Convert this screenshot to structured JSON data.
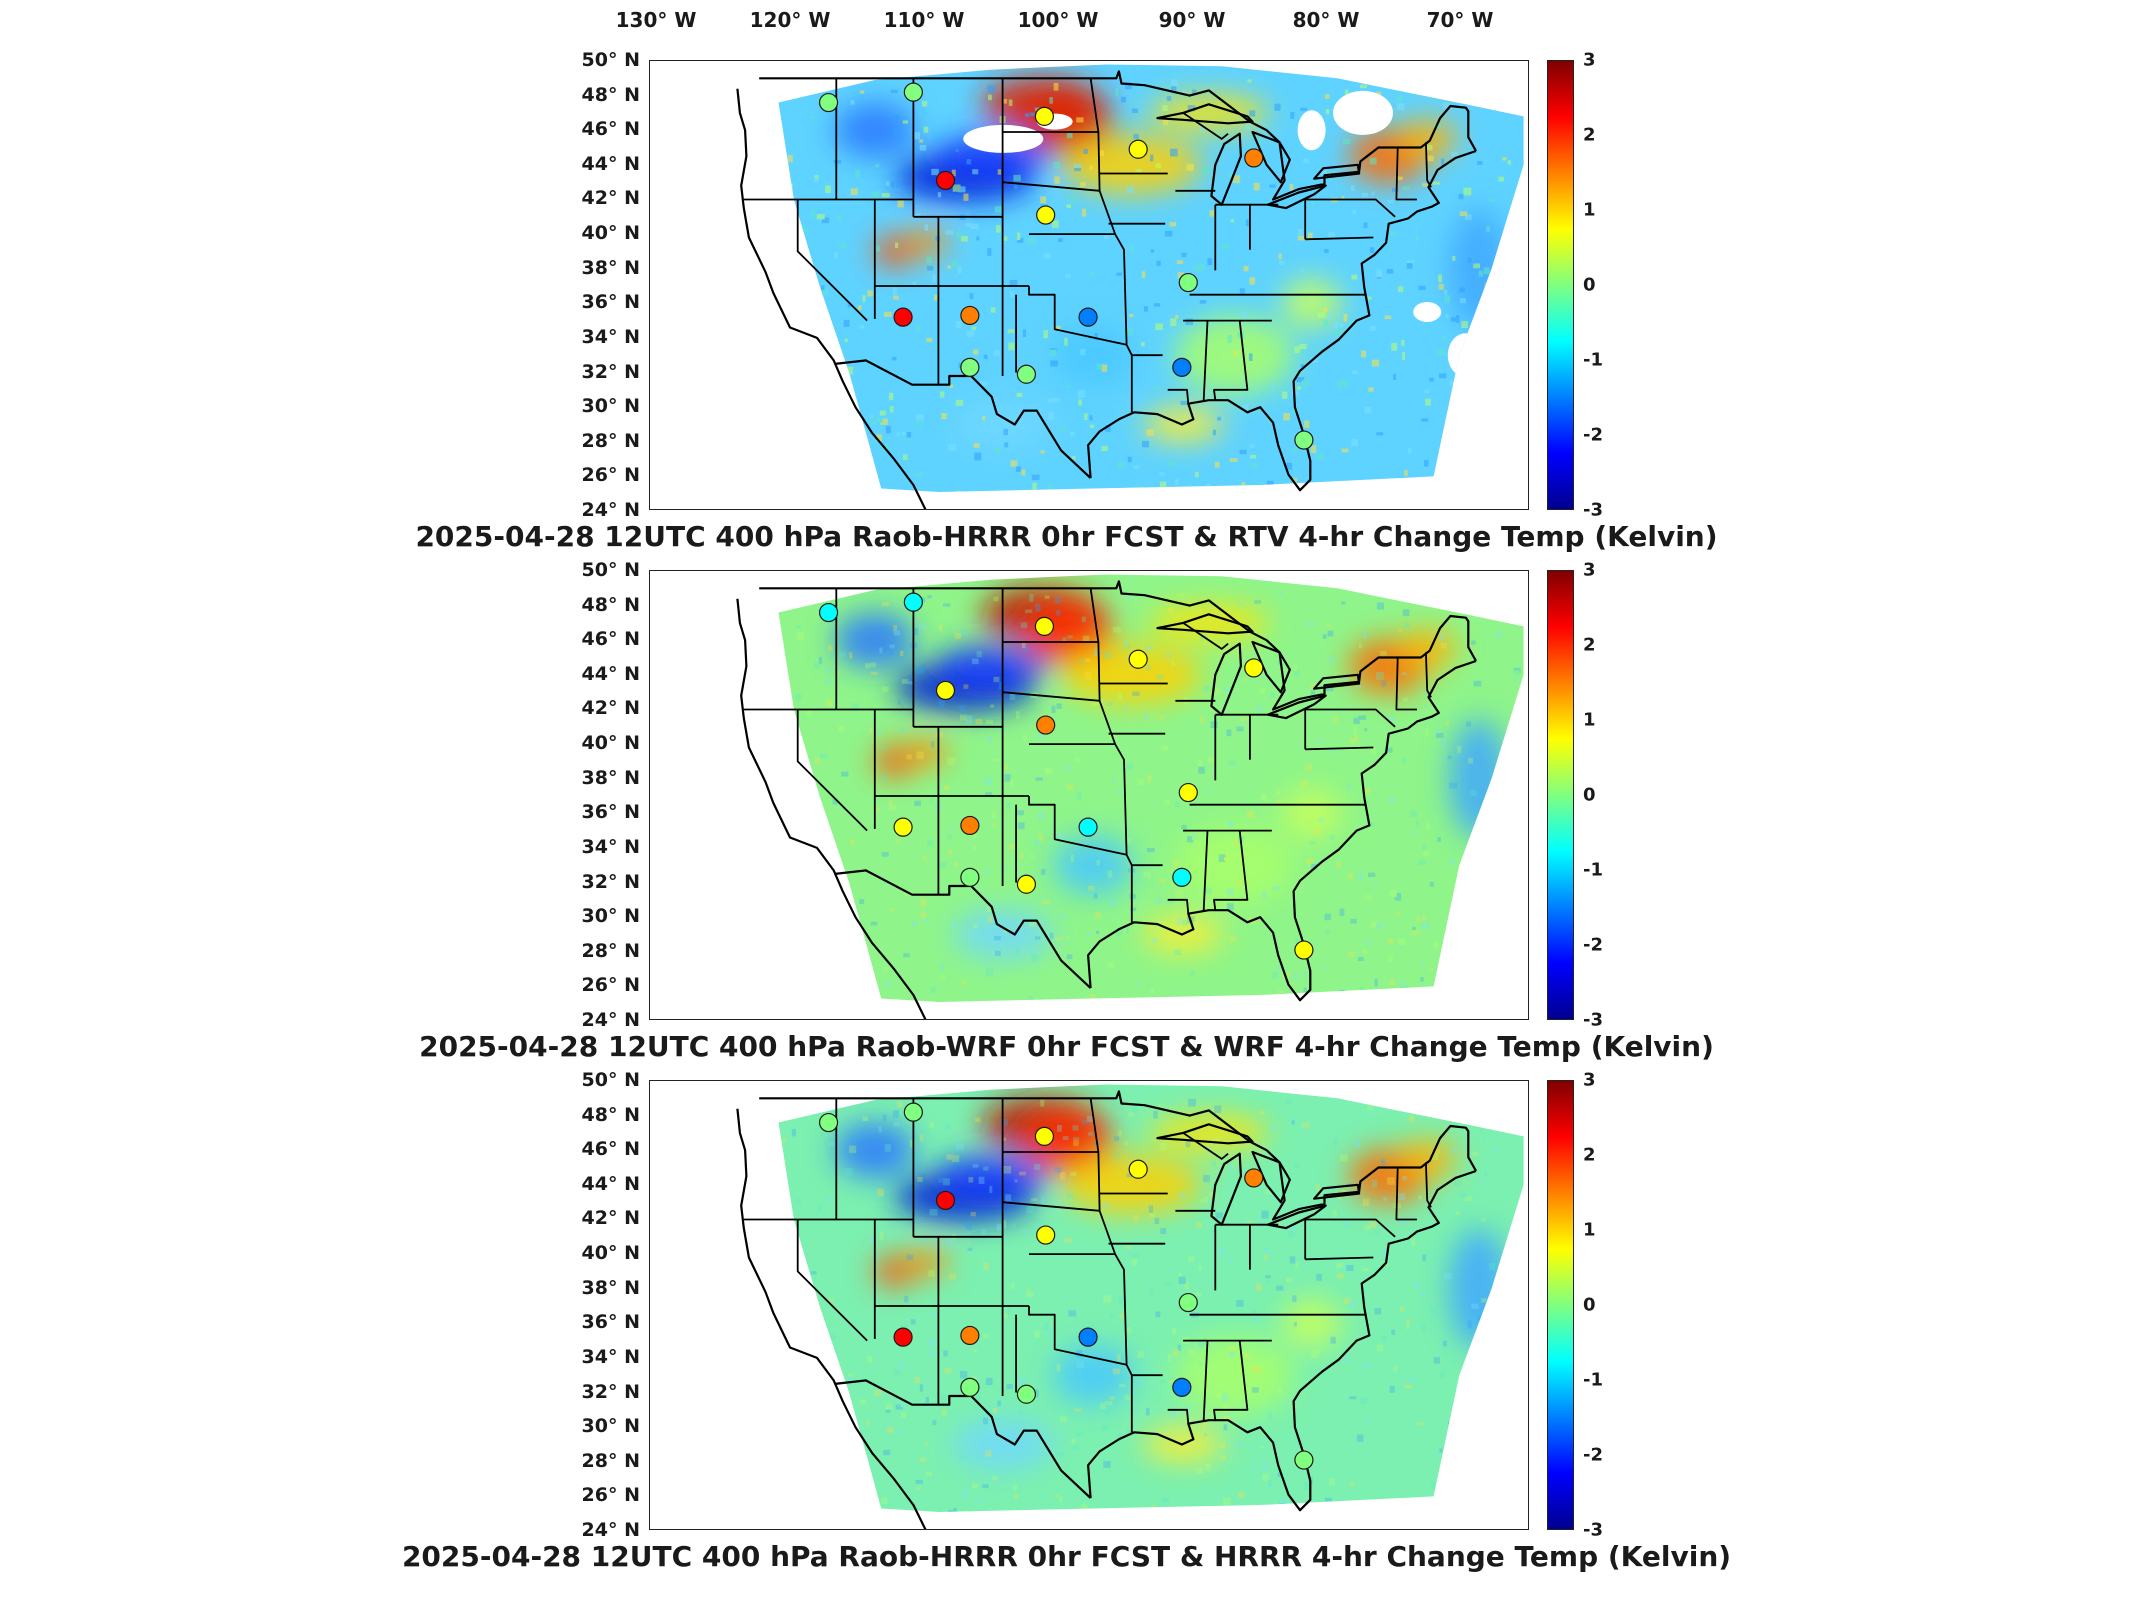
{
  "longitude_labels": [
    "130° W",
    "120° W",
    "110° W",
    "100° W",
    "90° W",
    "80° W",
    "70° W"
  ],
  "latitude_labels": [
    "50° N",
    "48° N",
    "46° N",
    "44° N",
    "42° N",
    "40° N",
    "38° N",
    "36° N",
    "34° N",
    "32° N",
    "30° N",
    "28° N",
    "26° N",
    "24° N"
  ],
  "colorbar": {
    "ticks": [
      "3",
      "2",
      "1",
      "0",
      "-1",
      "-2",
      "-3"
    ],
    "range": [
      -3,
      3
    ],
    "colors": [
      "#00008f",
      "#0000ff",
      "#0080ff",
      "#00ffff",
      "#80ff80",
      "#ffff00",
      "#ff8000",
      "#ff0000",
      "#800000"
    ]
  },
  "panels": [
    {
      "title": "2025-04-28 12UTC 400 hPa Raob-HRRR 0hr FCST & RTV 4-hr Change Temp (Kelvin)",
      "field_note_colors": {
        "base": "#5fd3ff",
        "warm": "#ff5a1a",
        "cold": "#1e3cff"
      },
      "has_missing_patches": true,
      "stations": [
        {
          "lat": 47.6,
          "lon": -117.6,
          "value": 0.2
        },
        {
          "lat": 48.2,
          "lon": -111.0,
          "value": 0.0
        },
        {
          "lat": 46.8,
          "lon": -100.8,
          "value": 0.6
        },
        {
          "lat": 43.1,
          "lon": -108.5,
          "value": 2.3
        },
        {
          "lat": 41.1,
          "lon": -100.7,
          "value": 0.7
        },
        {
          "lat": 35.2,
          "lon": -111.8,
          "value": 2.6
        },
        {
          "lat": 35.3,
          "lon": -106.6,
          "value": 1.5
        },
        {
          "lat": 35.2,
          "lon": -97.4,
          "value": -1.3
        },
        {
          "lat": 32.3,
          "lon": -106.6,
          "value": 0.3
        },
        {
          "lat": 31.9,
          "lon": -102.2,
          "value": -0.2
        },
        {
          "lat": 44.9,
          "lon": -93.5,
          "value": 0.4
        },
        {
          "lat": 44.4,
          "lon": -84.5,
          "value": 1.2
        },
        {
          "lat": 37.2,
          "lon": -89.6,
          "value": 0.0
        },
        {
          "lat": 32.3,
          "lon": -90.1,
          "value": -1.4
        },
        {
          "lat": 28.1,
          "lon": -80.6,
          "value": 0.3
        }
      ]
    },
    {
      "title": "2025-04-28 12UTC 400 hPa Raob-WRF 0hr FCST & WRF 4-hr Change Temp (Kelvin)",
      "field_note_colors": {
        "base": "#8ff58a",
        "warm": "#ff2a00",
        "cold": "#1a2cff"
      },
      "has_missing_patches": false,
      "stations": [
        {
          "lat": 47.6,
          "lon": -117.6,
          "value": -0.8
        },
        {
          "lat": 48.2,
          "lon": -111.0,
          "value": -0.6
        },
        {
          "lat": 46.8,
          "lon": -100.8,
          "value": 0.5
        },
        {
          "lat": 43.1,
          "lon": -108.5,
          "value": 0.6
        },
        {
          "lat": 41.1,
          "lon": -100.7,
          "value": 1.4
        },
        {
          "lat": 35.2,
          "lon": -111.8,
          "value": 1.1
        },
        {
          "lat": 35.3,
          "lon": -106.6,
          "value": 1.3
        },
        {
          "lat": 35.2,
          "lon": -97.4,
          "value": -0.5
        },
        {
          "lat": 32.3,
          "lon": -106.6,
          "value": 0.3
        },
        {
          "lat": 31.9,
          "lon": -102.2,
          "value": 0.6
        },
        {
          "lat": 44.9,
          "lon": -93.5,
          "value": 0.8
        },
        {
          "lat": 44.4,
          "lon": -84.5,
          "value": 1.0
        },
        {
          "lat": 37.2,
          "lon": -89.6,
          "value": 0.4
        },
        {
          "lat": 32.3,
          "lon": -90.1,
          "value": -0.4
        },
        {
          "lat": 28.1,
          "lon": -80.6,
          "value": 0.5
        }
      ]
    },
    {
      "title": "2025-04-28 12UTC 400 hPa Raob-HRRR 0hr FCST & HRRR 4-hr Change Temp (Kelvin)",
      "field_note_colors": {
        "base": "#7cf0b0",
        "warm": "#ff3000",
        "cold": "#1a2cff"
      },
      "has_missing_patches": false,
      "stations": [
        {
          "lat": 47.6,
          "lon": -117.6,
          "value": 0.2
        },
        {
          "lat": 48.2,
          "lon": -111.0,
          "value": 0.0
        },
        {
          "lat": 46.8,
          "lon": -100.8,
          "value": 0.6
        },
        {
          "lat": 43.1,
          "lon": -108.5,
          "value": 2.3
        },
        {
          "lat": 41.1,
          "lon": -100.7,
          "value": 0.7
        },
        {
          "lat": 35.2,
          "lon": -111.8,
          "value": 2.6
        },
        {
          "lat": 35.3,
          "lon": -106.6,
          "value": 1.5
        },
        {
          "lat": 35.2,
          "lon": -97.4,
          "value": -1.3
        },
        {
          "lat": 32.3,
          "lon": -106.6,
          "value": 0.3
        },
        {
          "lat": 31.9,
          "lon": -102.2,
          "value": -0.2
        },
        {
          "lat": 44.9,
          "lon": -93.5,
          "value": 0.4
        },
        {
          "lat": 44.4,
          "lon": -84.5,
          "value": 1.2
        },
        {
          "lat": 37.2,
          "lon": -89.6,
          "value": 0.0
        },
        {
          "lat": 32.3,
          "lon": -90.1,
          "value": -1.4
        },
        {
          "lat": 28.1,
          "lon": -80.6,
          "value": 0.3
        }
      ]
    }
  ]
}
